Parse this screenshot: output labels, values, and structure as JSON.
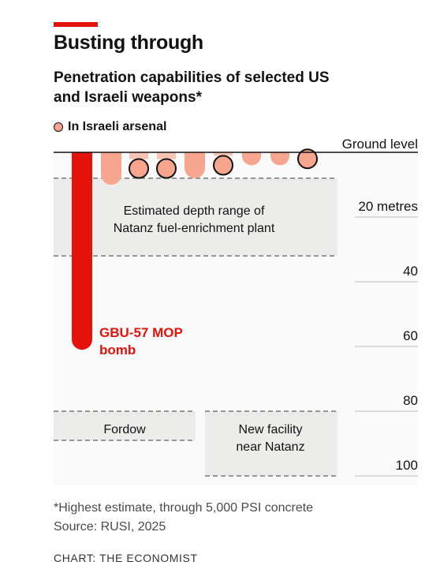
{
  "chart_data": {
    "type": "bar",
    "title": "Busting through",
    "subtitle": "Penetration capabilities of selected US and Israeli weapons*",
    "legend": [
      {
        "name": "In Israeli arsenal",
        "marker": "circle",
        "color": "#f5a48f"
      }
    ],
    "y_axis": {
      "label_top": "Ground level",
      "unit_label": "20 metres",
      "ticks": [
        20,
        40,
        60,
        80,
        100
      ],
      "tick_labels": [
        "20 metres",
        "40",
        "60",
        "80",
        "100"
      ],
      "range": [
        0,
        100
      ],
      "inverted": true,
      "position": "right"
    },
    "bars": [
      {
        "name": "GBU-57 MOP bomb",
        "label": "GBU-57 MOP\nbomb",
        "depth": 61,
        "color": "#e3120b",
        "israeli": false
      },
      {
        "name": "",
        "depth": 10,
        "color": "#f7a58f",
        "israeli": false
      },
      {
        "name": "",
        "depth": 5,
        "color": "#f7a58f",
        "israeli": true
      },
      {
        "name": "",
        "depth": 5,
        "color": "#f7a58f",
        "israeli": true
      },
      {
        "name": "",
        "depth": 8,
        "color": "#f7a58f",
        "israeli": false
      },
      {
        "name": "",
        "depth": 4,
        "color": "#f7a58f",
        "israeli": true
      },
      {
        "name": "",
        "depth": 4,
        "color": "#f7a58f",
        "israeli": false
      },
      {
        "name": "",
        "depth": 4,
        "color": "#f7a58f",
        "israeli": false
      },
      {
        "name": "",
        "depth": 2,
        "color": "#f7a58f",
        "israeli": true
      }
    ],
    "ranges": [
      {
        "label": "Estimated depth range of Natanz fuel-enrichment plant",
        "from": 8,
        "to": 32
      },
      {
        "label": "Fordow",
        "from": 80,
        "to": 89
      },
      {
        "label": "New facility near Natanz",
        "from": 80,
        "to": 100
      }
    ],
    "colors": {
      "accent": "#e3120b",
      "bar_light": "#f7a58f",
      "range_fill": "#ecedea",
      "dash": "#777777"
    }
  },
  "footnote": "*Highest estimate, through 5,000 PSI concrete",
  "source": "Source: RUSI, 2025",
  "credit": "CHART: THE ECONOMIST"
}
